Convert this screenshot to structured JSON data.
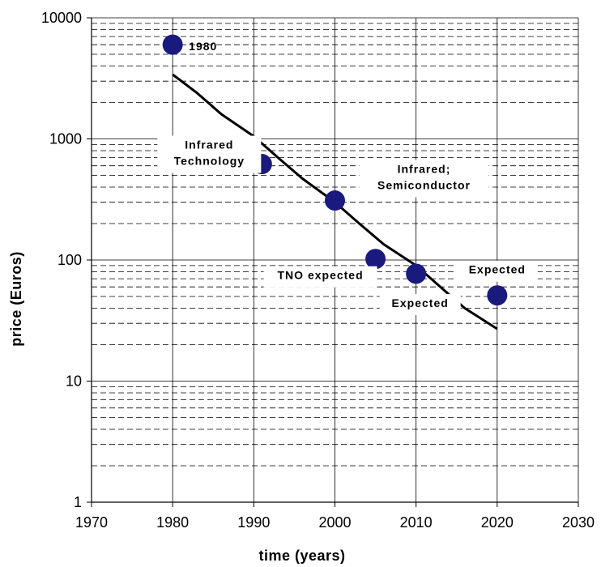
{
  "chart_data": {
    "type": "scatter",
    "title": "",
    "xlabel": "time (years)",
    "ylabel": "price (Euros)",
    "xlim": [
      1970,
      2030
    ],
    "ylim": [
      1,
      10000
    ],
    "yscale": "log",
    "x_ticks": [
      1970,
      1980,
      1990,
      2000,
      2010,
      2020,
      2030
    ],
    "y_ticks": [
      1,
      10,
      100,
      1000,
      10000
    ],
    "x_tick_labels": [
      "1970",
      "1980",
      "1990",
      "2000",
      "2010",
      "2020",
      "2030"
    ],
    "y_tick_labels": [
      "1",
      "10",
      "100",
      "1000",
      "10000"
    ],
    "grid": true,
    "marker_color": "#1a1a7e",
    "points": [
      {
        "x": 1980,
        "y": 6000,
        "label": "1980"
      },
      {
        "x": 1991,
        "y": 620,
        "label": "Infrared Technology"
      },
      {
        "x": 2000,
        "y": 310,
        "label": "Infrared; Semiconductor"
      },
      {
        "x": 2005,
        "y": 102,
        "label": "TNO expected"
      },
      {
        "x": 2010,
        "y": 77,
        "label": "Expected"
      },
      {
        "x": 2020,
        "y": 51,
        "label": "Expected"
      }
    ],
    "trend_line": {
      "x": [
        1980,
        1983,
        1986,
        1990,
        1993,
        1996,
        2000,
        2003,
        2006,
        2010,
        2013,
        2016,
        2020
      ],
      "y": [
        3400,
        2400,
        1600,
        1050,
        700,
        470,
        300,
        200,
        135,
        90,
        60,
        40,
        27
      ]
    }
  }
}
